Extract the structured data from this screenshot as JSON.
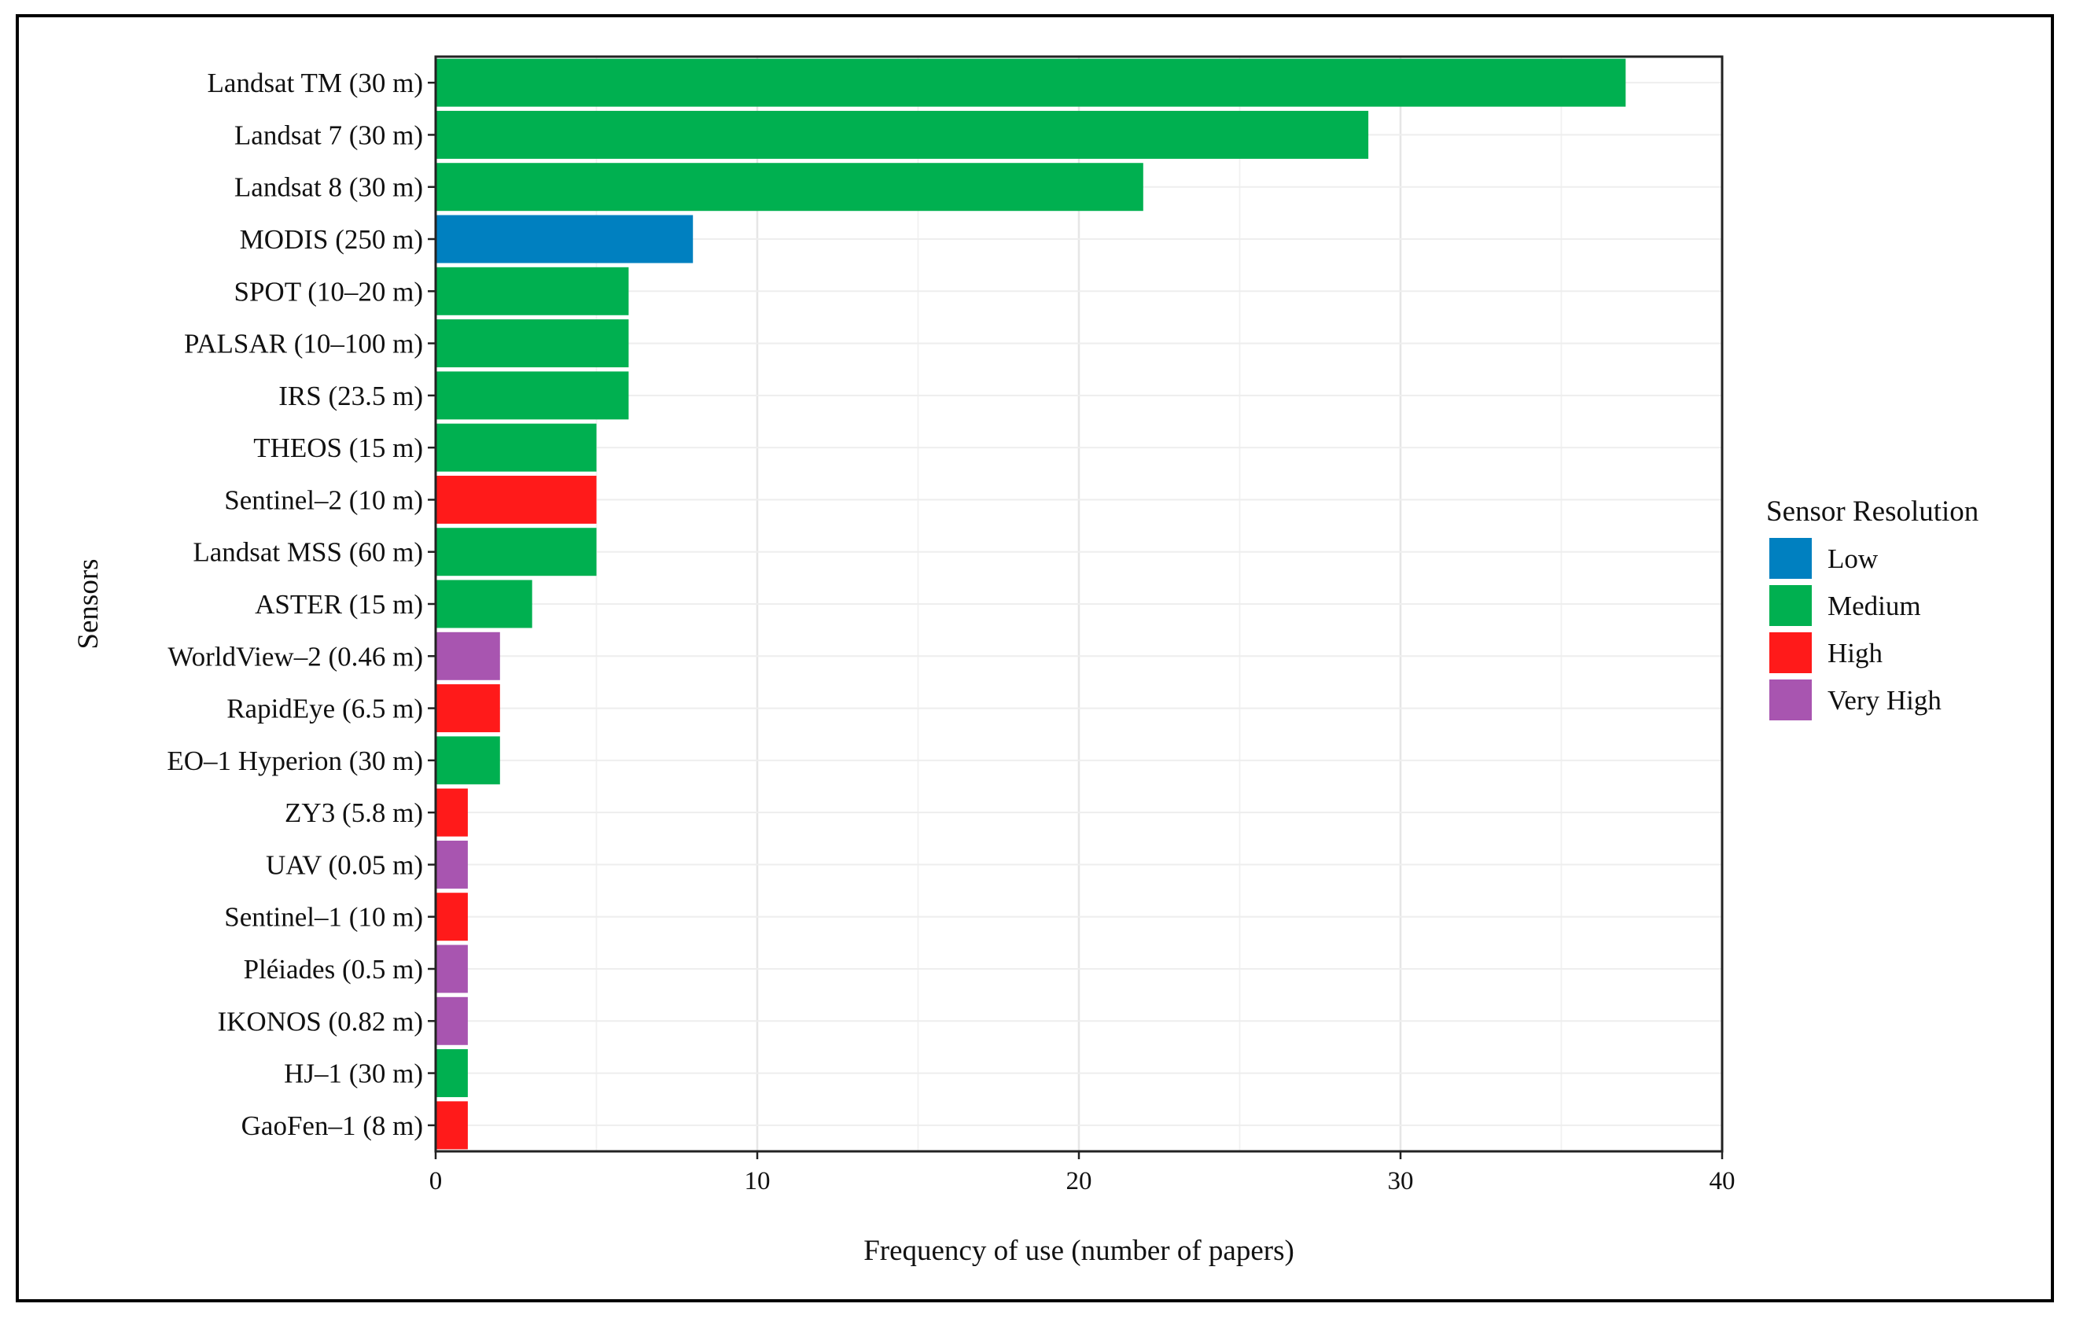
{
  "chart_data": {
    "type": "bar",
    "orientation": "horizontal",
    "xlabel": "Frequency of use (number of papers)",
    "ylabel": "Sensors",
    "xlim": [
      0,
      40
    ],
    "xticks": [
      0,
      10,
      20,
      30,
      40
    ],
    "grid": true,
    "legend": {
      "title": "Sensor Resolution",
      "placement": "right",
      "entries": [
        {
          "name": "Low",
          "color": "#0080C0"
        },
        {
          "name": "Medium",
          "color": "#00B050"
        },
        {
          "name": "High",
          "color": "#FF1A1A"
        },
        {
          "name": "Very High",
          "color": "#A855B0"
        }
      ]
    },
    "bars": [
      {
        "label": "Landsat TM (30 m)",
        "value": 37,
        "resolution": "Medium"
      },
      {
        "label": "Landsat 7 (30 m)",
        "value": 29,
        "resolution": "Medium"
      },
      {
        "label": "Landsat 8 (30 m)",
        "value": 22,
        "resolution": "Medium"
      },
      {
        "label": "MODIS (250 m)",
        "value": 8,
        "resolution": "Low"
      },
      {
        "label": "SPOT (10–20 m)",
        "value": 6,
        "resolution": "Medium"
      },
      {
        "label": "PALSAR (10–100 m)",
        "value": 6,
        "resolution": "Medium"
      },
      {
        "label": "IRS (23.5 m)",
        "value": 6,
        "resolution": "Medium"
      },
      {
        "label": "THEOS (15 m)",
        "value": 5,
        "resolution": "Medium"
      },
      {
        "label": "Sentinel–2 (10 m)",
        "value": 5,
        "resolution": "High"
      },
      {
        "label": "Landsat MSS (60 m)",
        "value": 5,
        "resolution": "Medium"
      },
      {
        "label": "ASTER (15 m)",
        "value": 3,
        "resolution": "Medium"
      },
      {
        "label": "WorldView–2 (0.46 m)",
        "value": 2,
        "resolution": "Very High"
      },
      {
        "label": "RapidEye (6.5 m)",
        "value": 2,
        "resolution": "High"
      },
      {
        "label": "EO–1 Hyperion (30 m)",
        "value": 2,
        "resolution": "Medium"
      },
      {
        "label": "ZY3 (5.8 m)",
        "value": 1,
        "resolution": "High"
      },
      {
        "label": "UAV (0.05 m)",
        "value": 1,
        "resolution": "Very High"
      },
      {
        "label": "Sentinel–1 (10 m)",
        "value": 1,
        "resolution": "High"
      },
      {
        "label": "Pléiades (0.5 m)",
        "value": 1,
        "resolution": "Very High"
      },
      {
        "label": "IKONOS (0.82 m)",
        "value": 1,
        "resolution": "Very High"
      },
      {
        "label": "HJ–1 (30 m)",
        "value": 1,
        "resolution": "Medium"
      },
      {
        "label": "GaoFen–1 (8 m)",
        "value": 1,
        "resolution": "High"
      }
    ]
  }
}
